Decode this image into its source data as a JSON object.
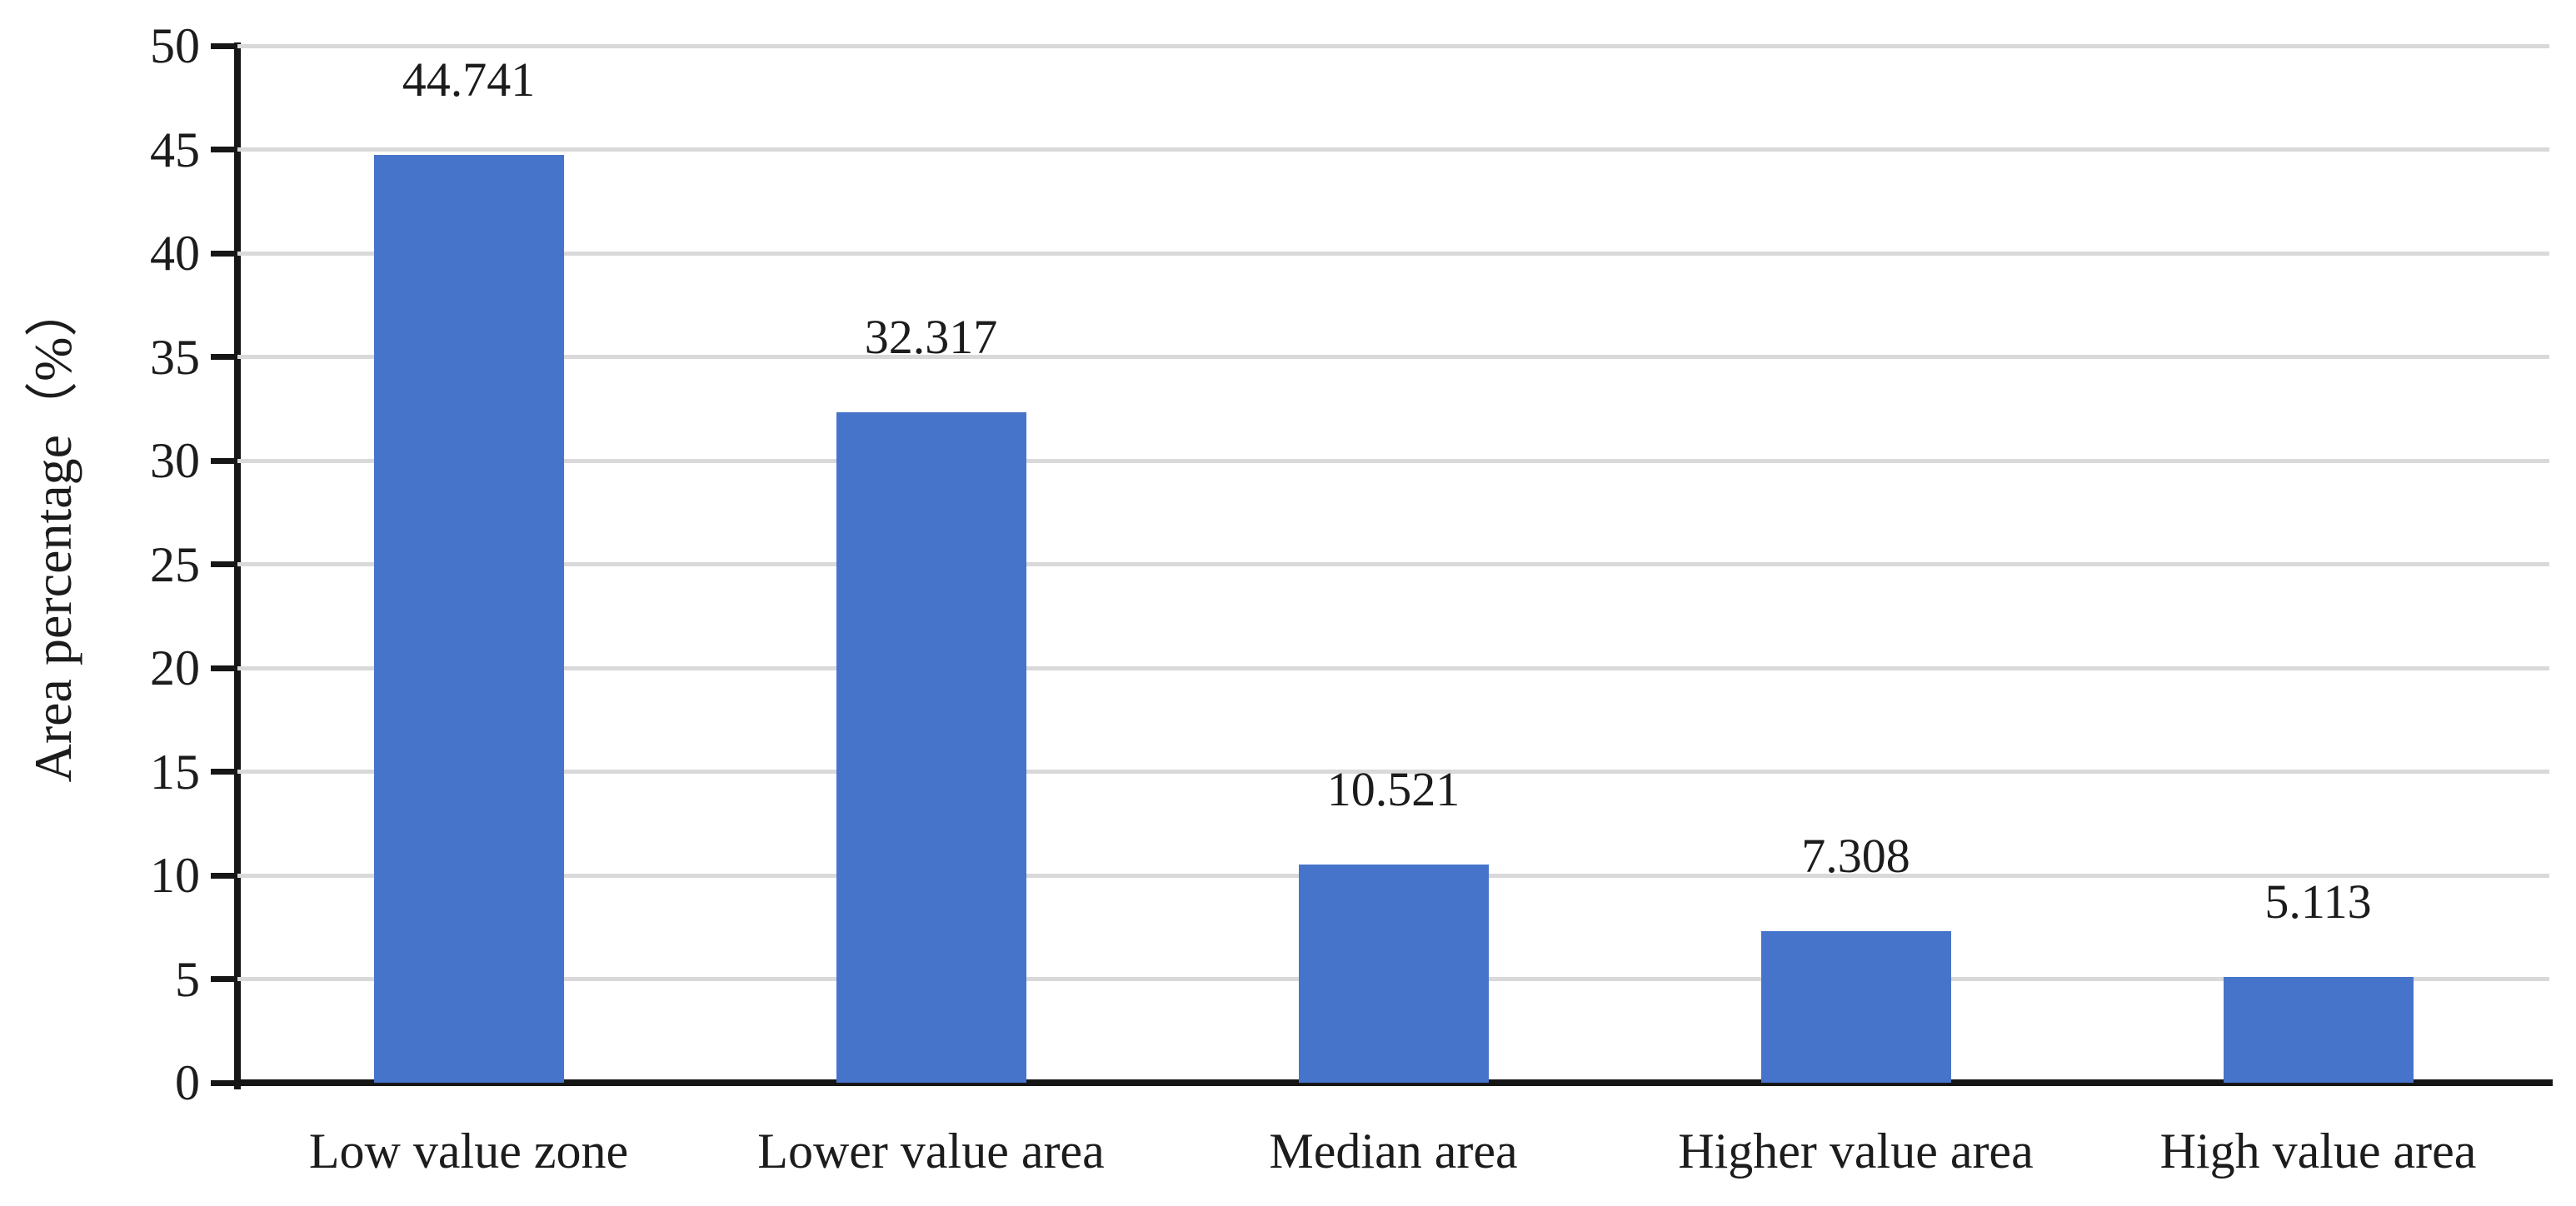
{
  "chart_data": {
    "type": "bar",
    "title": "",
    "xlabel": "",
    "ylabel": "Area percentage（%）",
    "categories": [
      "Low value zone",
      "Lower value area",
      "Median area",
      "Higher value area",
      "High value area"
    ],
    "values": [
      44.741,
      32.317,
      10.521,
      7.308,
      5.113
    ],
    "bar_labels": [
      "44.741",
      "32.317",
      "10.521",
      "7.308",
      "5.113"
    ],
    "yticks": [
      0,
      5,
      10,
      15,
      20,
      25,
      30,
      35,
      40,
      45,
      50
    ],
    "ylim": [
      0,
      50
    ],
    "grid": true,
    "legend": "none",
    "colors": {
      "bar": "#4674CA",
      "gridline": "#D9D9D9",
      "axis": "#161616",
      "text": "#1C1C1C",
      "background": "#FFFFFF"
    }
  }
}
